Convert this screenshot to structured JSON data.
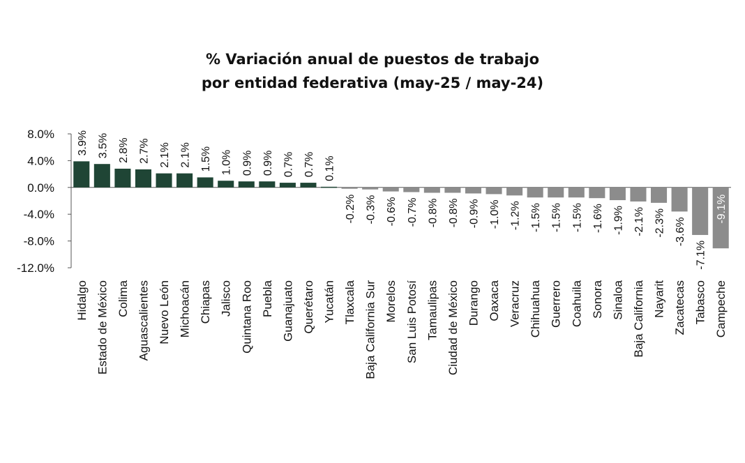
{
  "chart_data": {
    "type": "bar",
    "title_line1": "% Variación anual de puestos de trabajo",
    "title_line2": "por entidad federativa (may-25 / may-24)",
    "xlabel": "",
    "ylabel": "",
    "ylim": [
      -12,
      8
    ],
    "yticks": [
      8,
      4,
      0,
      -4,
      -8,
      -12
    ],
    "ytick_labels": [
      "8.0%",
      "4.0%",
      "0.0%",
      "-4.0%",
      "-8.0%",
      "-12.0%"
    ],
    "categories": [
      "Hidalgo",
      "Estado de México",
      "Colima",
      "Aguascalientes",
      "Nuevo León",
      "Michoacán",
      "Chiapas",
      "Jalisco",
      "Quintana Roo",
      "Puebla",
      "Guanajuato",
      "Querétaro",
      "Yucatán",
      "Tlaxcala",
      "Baja California Sur",
      "Morelos",
      "San Luis Potosí",
      "Tamaulipas",
      "Ciudad de México",
      "Durango",
      "Oaxaca",
      "Veracruz",
      "Chihuahua",
      "Guerrero",
      "Coahuila",
      "Sonora",
      "Sinaloa",
      "Baja California",
      "Nayarit",
      "Zacatecas",
      "Tabasco",
      "Campeche"
    ],
    "values": [
      3.9,
      3.5,
      2.8,
      2.7,
      2.1,
      2.1,
      1.5,
      1.0,
      0.9,
      0.9,
      0.7,
      0.7,
      0.1,
      -0.2,
      -0.3,
      -0.6,
      -0.7,
      -0.8,
      -0.8,
      -0.9,
      -1.0,
      -1.2,
      -1.5,
      -1.5,
      -1.5,
      -1.6,
      -1.9,
      -2.1,
      -2.3,
      -3.6,
      -7.1,
      -9.1
    ],
    "data_labels": [
      "3.9%",
      "3.5%",
      "2.8%",
      "2.7%",
      "2.1%",
      "2.1%",
      "1.5%",
      "1.0%",
      "0.9%",
      "0.9%",
      "0.7%",
      "0.7%",
      "0.1%",
      "-0.2%",
      "-0.3%",
      "-0.6%",
      "-0.7%",
      "-0.8%",
      "-0.8%",
      "-0.9%",
      "-1.0%",
      "-1.2%",
      "-1.5%",
      "-1.5%",
      "-1.5%",
      "-1.6%",
      "-1.9%",
      "-2.1%",
      "-2.3%",
      "-3.6%",
      "-7.1%",
      "-9.1%"
    ],
    "colors": {
      "positive": "#1f4535",
      "negative": "#8c8c8c",
      "axis": "#555555"
    },
    "grid": false,
    "legend": "none"
  }
}
